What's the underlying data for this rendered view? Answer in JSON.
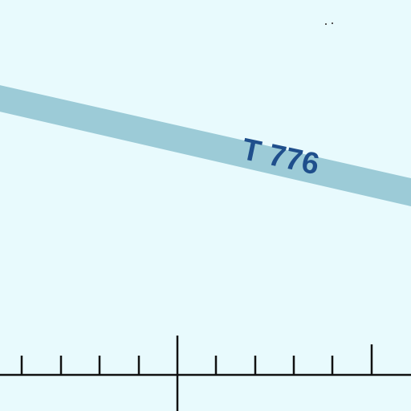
{
  "map": {
    "background_color": "#e8fafd",
    "route": {
      "label": "T 776",
      "band_color": "#9ccbd7",
      "label_color": "#1f4f8c"
    },
    "scale_bar": {
      "color": "#111111",
      "tick_count_left": 4,
      "tick_count_right": 5
    },
    "specks_color": "#555555"
  }
}
